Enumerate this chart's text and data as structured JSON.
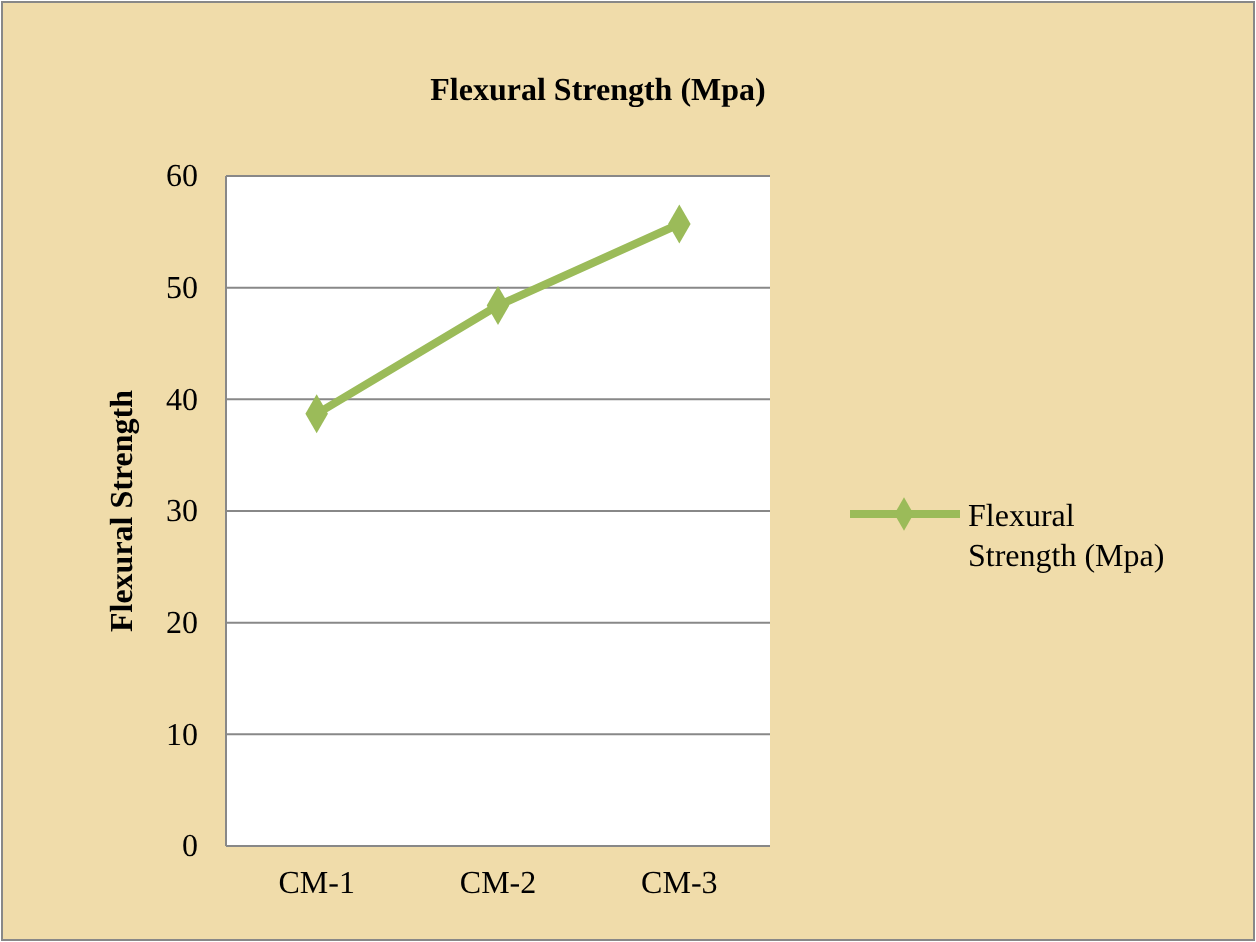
{
  "chart_data": {
    "type": "line",
    "title": "Flexural Strength (Mpa)",
    "ylabel": "Flexural Strength",
    "categories": [
      "CM-1",
      "CM-2",
      "CM-3"
    ],
    "series": [
      {
        "name": "Flexural Strength (Mpa)",
        "color": "#9bbb59",
        "values": [
          38.7,
          48.4,
          55.7
        ]
      }
    ],
    "ylim": [
      0,
      60
    ],
    "yticks": [
      0,
      10,
      20,
      30,
      40,
      50,
      60
    ],
    "grid": "y",
    "legend": "right",
    "marker": "diamond"
  }
}
